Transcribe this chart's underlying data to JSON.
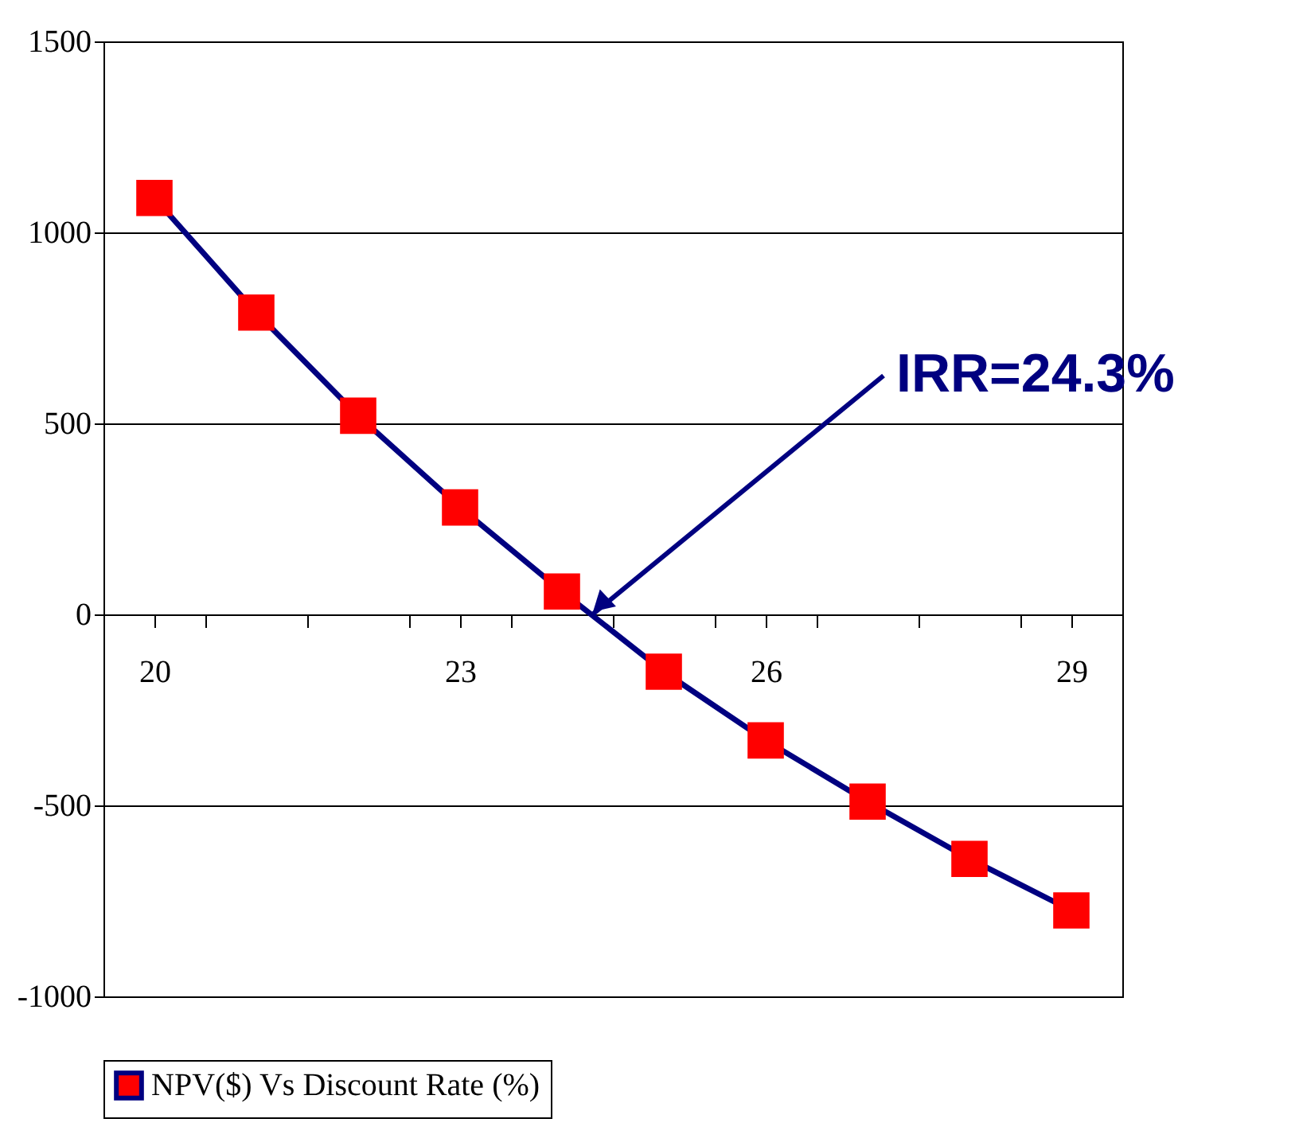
{
  "chart_data": {
    "type": "line",
    "x": [
      20,
      21,
      22,
      23,
      24,
      25,
      26,
      27,
      28,
      29
    ],
    "series": [
      {
        "name": "NPV($) Vs Discount Rate (%)",
        "color": "#000080",
        "colors": [
          "#ff0000",
          "#ff0000",
          "#ff0000",
          "#ff0000",
          "#ff0000",
          "#ff0000",
          "#ff0000",
          "#ff0000",
          "#ff0000",
          "#ff0000"
        ],
        "values": [
          1090,
          790,
          520,
          280,
          60,
          -150,
          -330,
          -490,
          -640,
          -775
        ]
      }
    ],
    "xlim": [
      19.5,
      29.5
    ],
    "xticks": [
      20,
      23,
      26,
      29,
      {
        "value": 20.5,
        "label": null
      },
      {
        "value": 21.5,
        "label": null
      },
      {
        "value": 22.5,
        "label": null
      },
      {
        "value": 23.5,
        "label": null
      },
      {
        "value": 24.5,
        "label": null
      },
      {
        "value": 25.5,
        "label": null
      },
      {
        "value": 26.5,
        "label": null
      },
      {
        "value": 27.5,
        "label": null
      },
      {
        "value": 28.5,
        "label": null
      }
    ],
    "ylim": [
      -1000,
      1500
    ],
    "yticks": [
      -1000,
      -500,
      0,
      500,
      1000,
      1500
    ],
    "grid": "y",
    "marker": "square",
    "line_style": "solid",
    "legend": "bottom",
    "annotations": [
      {
        "text": "IRR=24.3%",
        "x": 24.3,
        "y": 0
      }
    ]
  }
}
